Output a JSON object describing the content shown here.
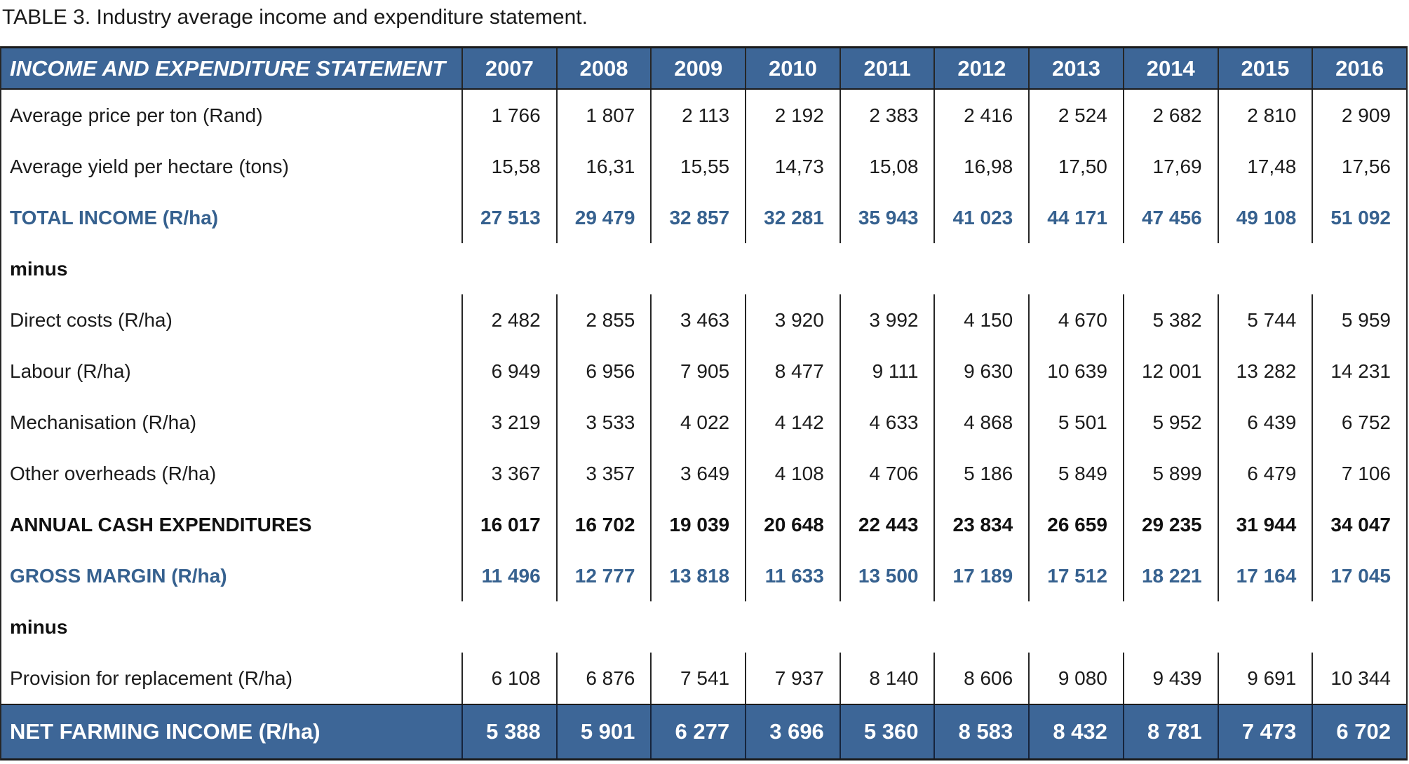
{
  "page": {
    "title": "TABLE 3. Industry average income and expenditure statement."
  },
  "colors": {
    "header_bg": "#3d6697",
    "footer_bg": "#3d6697",
    "blue_text": "#36618f",
    "border_dark": "#1a1a1a",
    "header_text": "#ffffff",
    "body_text": "#1c1c1c"
  },
  "table": {
    "header": {
      "label": "INCOME AND EXPENDITURE STATEMENT",
      "years": [
        "2007",
        "2008",
        "2009",
        "2010",
        "2011",
        "2012",
        "2013",
        "2014",
        "2015",
        "2016"
      ]
    },
    "rows": [
      {
        "label": "Average price per ton (Rand)",
        "style": "normal",
        "values": [
          "1 766",
          "1 807",
          "2 113",
          "2 192",
          "2 383",
          "2 416",
          "2 524",
          "2 682",
          "2 810",
          "2 909"
        ]
      },
      {
        "label": "Average yield per hectare (tons)",
        "style": "normal",
        "values": [
          "15,58",
          "16,31",
          "15,55",
          "14,73",
          "15,08",
          "16,98",
          "17,50",
          "17,69",
          "17,48",
          "17,56"
        ]
      },
      {
        "label": "TOTAL INCOME (R/ha)",
        "style": "blue",
        "values": [
          "27 513",
          "29 479",
          "32 857",
          "32 281",
          "35 943",
          "41 023",
          "44 171",
          "47 456",
          "49 108",
          "51 092"
        ]
      },
      {
        "label": "minus",
        "style": "minus",
        "values": []
      },
      {
        "label": "Direct costs (R/ha)",
        "style": "normal",
        "values": [
          "2 482",
          "2 855",
          "3 463",
          "3 920",
          "3 992",
          "4 150",
          "4 670",
          "5 382",
          "5 744",
          "5 959"
        ]
      },
      {
        "label": "Labour (R/ha)",
        "style": "normal",
        "values": [
          "6 949",
          "6 956",
          "7 905",
          "8 477",
          "9 111",
          "9 630",
          "10 639",
          "12 001",
          "13 282",
          "14 231"
        ]
      },
      {
        "label": "Mechanisation (R/ha)",
        "style": "normal",
        "values": [
          "3 219",
          "3 533",
          "4 022",
          "4 142",
          "4 633",
          "4 868",
          "5 501",
          "5 952",
          "6 439",
          "6 752"
        ]
      },
      {
        "label": "Other overheads (R/ha)",
        "style": "normal",
        "values": [
          "3 367",
          "3 357",
          "3 649",
          "4 108",
          "4 706",
          "5 186",
          "5 849",
          "5 899",
          "6 479",
          "7 106"
        ]
      },
      {
        "label": "ANNUAL CASH EXPENDITURES",
        "style": "bold",
        "values": [
          "16 017",
          "16 702",
          "19 039",
          "20 648",
          "22 443",
          "23 834",
          "26 659",
          "29 235",
          "31 944",
          "34 047"
        ]
      },
      {
        "label": "GROSS MARGIN (R/ha)",
        "style": "blue",
        "values": [
          "11 496",
          "12 777",
          "13 818",
          "11 633",
          "13 500",
          "17 189",
          "17 512",
          "18 221",
          "17 164",
          "17 045"
        ]
      },
      {
        "label": "minus",
        "style": "minus",
        "values": []
      },
      {
        "label": "Provision for replacement (R/ha)",
        "style": "normal",
        "values": [
          "6 108",
          "6 876",
          "7 541",
          "7 937",
          "8 140",
          "8 606",
          "9 080",
          "9 439",
          "9 691",
          "10 344"
        ]
      },
      {
        "label": "NET FARMING INCOME (R/ha)",
        "style": "footer",
        "values": [
          "5 388",
          "5 901",
          "6 277",
          "3 696",
          "5 360",
          "8 583",
          "8 432",
          "8 781",
          "7 473",
          "6 702"
        ]
      }
    ]
  }
}
